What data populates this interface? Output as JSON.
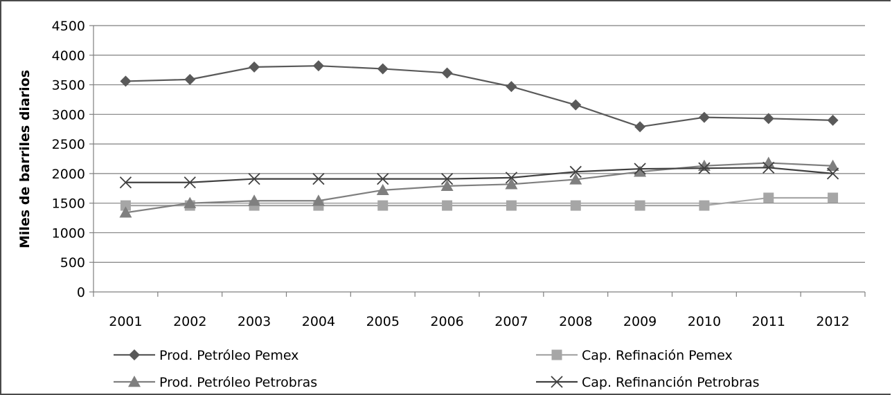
{
  "chart_data": {
    "type": "line",
    "title": "",
    "xlabel": "",
    "ylabel": "Miles de barriles diarios",
    "ylim": [
      0,
      4500
    ],
    "yticks": [
      0,
      500,
      1000,
      1500,
      2000,
      2500,
      3000,
      3500,
      4000,
      4500
    ],
    "grid": true,
    "legend_position": "bottom",
    "categories": [
      "2001",
      "2002",
      "2003",
      "2004",
      "2005",
      "2006",
      "2007",
      "2008",
      "2009",
      "2010",
      "2011",
      "2012"
    ],
    "series": [
      {
        "name": "Prod. Petróleo Pemex",
        "marker": "diamond",
        "color": "#595959",
        "values": [
          3560,
          3590,
          3800,
          3820,
          3770,
          3700,
          3470,
          3160,
          2790,
          2950,
          2930,
          2900
        ]
      },
      {
        "name": "Cap. Refinación Pemex",
        "marker": "square",
        "color": "#a6a6a6",
        "values": [
          1460,
          1460,
          1460,
          1460,
          1460,
          1460,
          1460,
          1460,
          1460,
          1460,
          1590,
          1590
        ]
      },
      {
        "name": "Prod. Petróleo Petrobras",
        "marker": "triangle",
        "color": "#7f7f7f",
        "values": [
          1340,
          1500,
          1540,
          1540,
          1720,
          1790,
          1820,
          1900,
          2030,
          2130,
          2180,
          2130
        ]
      },
      {
        "name": "Cap. Refinanción Petrobras",
        "marker": "x",
        "color": "#404040",
        "values": [
          1850,
          1850,
          1910,
          1910,
          1910,
          1910,
          1930,
          2030,
          2080,
          2090,
          2100,
          2000
        ]
      }
    ]
  }
}
